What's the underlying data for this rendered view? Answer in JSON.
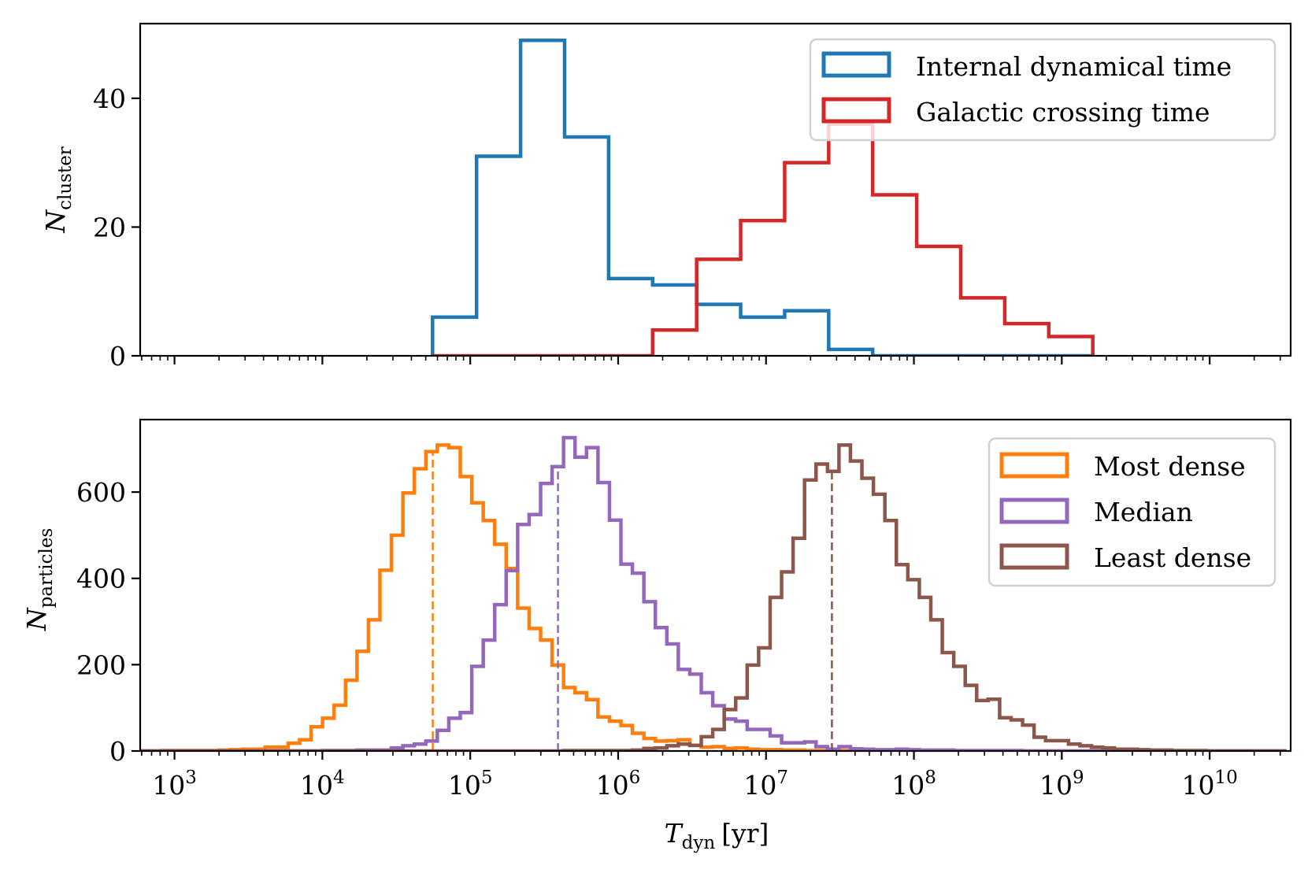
{
  "chart_data": [
    {
      "type": "histogram-step",
      "xscale": "log",
      "xlim": [
        586,
        35300000000.0
      ],
      "ylim": [
        0,
        51.6
      ],
      "ylabel": {
        "symbol": "N",
        "subscript": "cluster"
      },
      "y_ticks": [
        0,
        20,
        40
      ],
      "y_tick_labels": [
        "0",
        "20",
        "40"
      ],
      "x_tick_labels_shown": false,
      "bin_range": [
        55600,
        1620000000.0
      ],
      "n_bins": 15,
      "bin_spacing": "log",
      "legend_position": "upper right",
      "series": [
        {
          "name": "Internal dynamical time",
          "color": "#1f77b4",
          "values": [
            6,
            31,
            49,
            34,
            12,
            11,
            8,
            6,
            7,
            1,
            0,
            0,
            0,
            0,
            0
          ]
        },
        {
          "name": "Galactic crossing time",
          "color": "#d62728",
          "values": [
            0,
            0,
            0,
            0,
            0,
            4,
            15,
            21,
            30,
            36,
            25,
            17,
            9,
            5,
            3
          ]
        }
      ]
    },
    {
      "type": "histogram-step",
      "xscale": "log",
      "xlim": [
        586,
        35300000000.0
      ],
      "ylim": [
        0,
        768
      ],
      "xlabel": {
        "symbol": "T",
        "subscript": "dyn",
        "unit": "[yr]"
      },
      "ylabel": {
        "symbol": "N",
        "subscript": "particles"
      },
      "y_ticks": [
        0,
        200,
        400,
        600
      ],
      "y_tick_labels": [
        "0",
        "200",
        "400",
        "600"
      ],
      "x_ticks": [
        1000.0,
        10000.0,
        100000.0,
        1000000.0,
        10000000.0,
        100000000.0,
        1000000000.0,
        10000000000.0
      ],
      "x_tick_labels": [
        {
          "base": "10",
          "exp": "3"
        },
        {
          "base": "10",
          "exp": "4"
        },
        {
          "base": "10",
          "exp": "5"
        },
        {
          "base": "10",
          "exp": "6"
        },
        {
          "base": "10",
          "exp": "7"
        },
        {
          "base": "10",
          "exp": "8"
        },
        {
          "base": "10",
          "exp": "9"
        },
        {
          "base": "10",
          "exp": "10"
        }
      ],
      "bin_range": [
        575,
        33100000000.0
      ],
      "n_bins": 100,
      "bin_spacing": "log",
      "legend_position": "upper right",
      "series": [
        {
          "name": "Most dense",
          "color": "#ff7f0e",
          "median": 55800,
          "values": [
            0,
            0,
            1,
            1,
            1,
            1,
            1,
            2,
            3,
            4,
            4,
            9,
            9,
            18,
            26,
            56,
            76,
            106,
            164,
            231,
            304,
            419,
            500,
            598,
            654,
            694,
            709,
            703,
            636,
            575,
            534,
            479,
            423,
            331,
            284,
            257,
            199,
            147,
            135,
            119,
            79,
            69,
            59,
            41,
            29,
            23,
            24,
            26,
            13,
            9,
            10,
            6,
            7,
            4,
            3,
            3,
            2,
            2,
            1,
            1,
            1,
            1,
            0,
            0,
            0,
            0,
            0,
            0,
            0,
            0,
            0,
            0,
            0,
            0,
            0,
            0,
            0,
            0,
            0,
            0,
            0,
            0,
            0,
            0,
            0,
            0,
            0,
            0,
            0,
            0,
            0,
            0,
            0,
            0,
            0,
            0,
            0,
            0,
            0,
            0
          ]
        },
        {
          "name": "Median",
          "color": "#9467bd",
          "median": 392000,
          "values": [
            0,
            0,
            0,
            0,
            0,
            0,
            0,
            0,
            0,
            0,
            0,
            0,
            0,
            0,
            0,
            0,
            1,
            1,
            1,
            2,
            2,
            2,
            7,
            12,
            16,
            23,
            48,
            76,
            89,
            196,
            257,
            339,
            418,
            525,
            548,
            620,
            659,
            726,
            681,
            703,
            622,
            535,
            433,
            412,
            346,
            286,
            248,
            189,
            178,
            135,
            105,
            74,
            69,
            50,
            50,
            35,
            19,
            19,
            21,
            10,
            4,
            10,
            5,
            4,
            3,
            3,
            4,
            3,
            2,
            2,
            2,
            1,
            1,
            1,
            1,
            1,
            1,
            0,
            0,
            0,
            0,
            0,
            0,
            0,
            0,
            0,
            0,
            0,
            0,
            0,
            0,
            0,
            0,
            0,
            0,
            0,
            0,
            0,
            0,
            0
          ]
        },
        {
          "name": "Least dense",
          "color": "#8c564b",
          "median": 27900000,
          "values": [
            0,
            0,
            0,
            0,
            0,
            0,
            0,
            0,
            0,
            0,
            0,
            0,
            0,
            0,
            0,
            0,
            0,
            0,
            0,
            0,
            0,
            0,
            0,
            0,
            0,
            0,
            0,
            0,
            0,
            0,
            0,
            0,
            0,
            0,
            0,
            0,
            0,
            1,
            1,
            1,
            1,
            1,
            1,
            2,
            6,
            7,
            12,
            16,
            13,
            33,
            50,
            96,
            123,
            199,
            239,
            356,
            415,
            493,
            628,
            665,
            648,
            709,
            672,
            632,
            595,
            534,
            432,
            397,
            356,
            304,
            228,
            196,
            152,
            117,
            120,
            77,
            72,
            60,
            32,
            24,
            24,
            16,
            12,
            9,
            7,
            4,
            4,
            3,
            2,
            2,
            1,
            1,
            1,
            0,
            0,
            0,
            0,
            0,
            0,
            0
          ]
        }
      ]
    }
  ]
}
